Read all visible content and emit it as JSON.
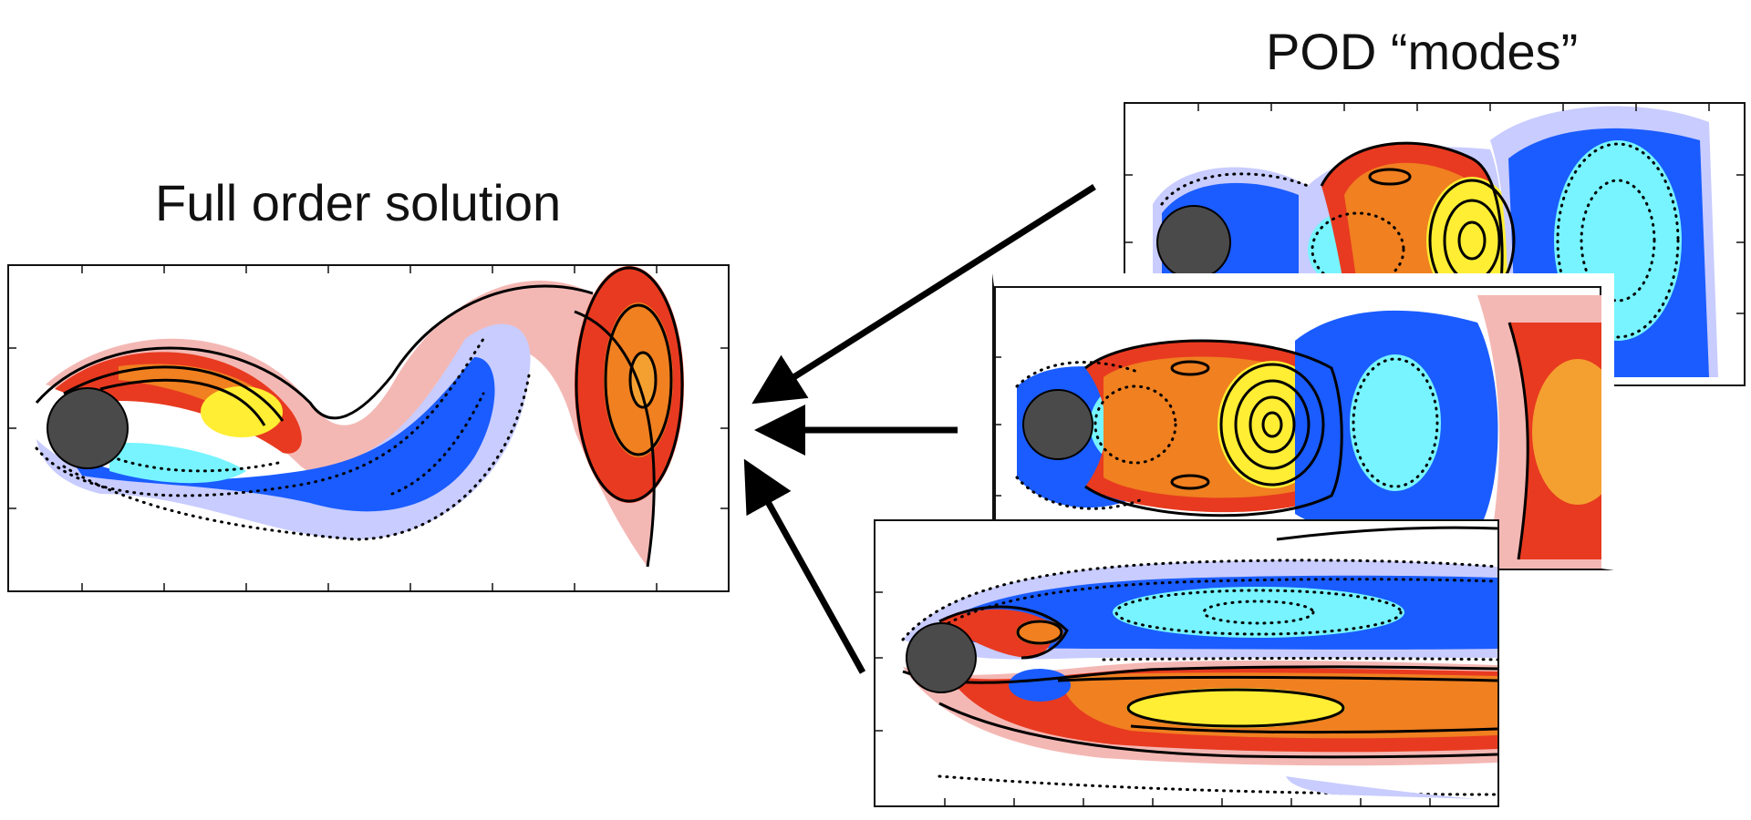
{
  "full_title": "Full order solution",
  "pod_title": "POD “modes”",
  "colors": {
    "positive_high": "#ffee33",
    "positive_mid": "#f08020",
    "positive_low": "#e83a20",
    "positive_faint": "#f4b8b4",
    "negative_high": "#77f4ff",
    "negative_mid": "#1a5cff",
    "negative_faint": "#c8ccff",
    "cylinder": "#4a4a4a"
  }
}
